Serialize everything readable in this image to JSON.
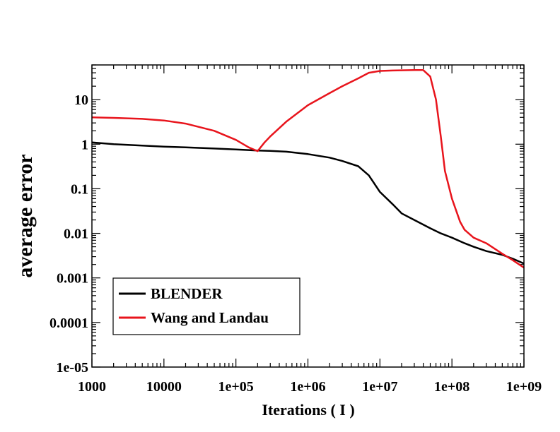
{
  "chart_data": {
    "type": "line",
    "title": "",
    "xlabel": "Iterations ( I )",
    "ylabel": "average error",
    "x_scale": "log",
    "y_scale": "log",
    "xlim": [
      1000,
      1000000000
    ],
    "ylim": [
      1e-05,
      60
    ],
    "x_tick_values": [
      1000,
      10000,
      100000,
      1000000,
      10000000,
      100000000,
      1000000000
    ],
    "x_tick_labels": [
      "1000",
      "10000",
      "1e+05",
      "1e+06",
      "1e+07",
      "1e+08",
      "1e+09"
    ],
    "y_tick_values": [
      1e-05,
      0.0001,
      0.001,
      0.01,
      0.1,
      1,
      10
    ],
    "y_tick_labels": [
      "1e-05",
      "0.0001",
      "0.001",
      "0.01",
      "0.1",
      "1",
      "10"
    ],
    "grid": false,
    "legend_position": "bottom-left",
    "series": [
      {
        "name": "BLENDER",
        "color": "#000000",
        "x": [
          1000,
          2000,
          5000,
          10000,
          20000,
          50000,
          100000,
          200000,
          300000,
          500000,
          1000000,
          2000000,
          3000000,
          5000000,
          7000000,
          10000000,
          15000000,
          20000000,
          30000000,
          50000000,
          70000000,
          100000000,
          150000000,
          200000000,
          300000000,
          500000000,
          700000000,
          1000000000
        ],
        "y": [
          1.1,
          1.0,
          0.93,
          0.88,
          0.85,
          0.8,
          0.76,
          0.72,
          0.71,
          0.68,
          0.6,
          0.5,
          0.42,
          0.32,
          0.2,
          0.085,
          0.045,
          0.028,
          0.02,
          0.013,
          0.01,
          0.008,
          0.006,
          0.005,
          0.004,
          0.0033,
          0.0027,
          0.0021
        ]
      },
      {
        "name": "Wang and Landau",
        "color": "#e8141c",
        "x": [
          1000,
          2000,
          5000,
          10000,
          20000,
          50000,
          100000,
          150000,
          200000,
          250000,
          300000,
          500000,
          1000000,
          2000000,
          3000000,
          5000000,
          7000000,
          10000000,
          15000000,
          20000000,
          30000000,
          40000000,
          50000000,
          60000000,
          70000000,
          80000000,
          100000000,
          130000000,
          150000000,
          200000000,
          300000000,
          500000000,
          700000000,
          1000000000
        ],
        "y": [
          4.0,
          3.9,
          3.7,
          3.4,
          2.9,
          2.0,
          1.25,
          0.85,
          0.7,
          1.1,
          1.5,
          3.2,
          7.5,
          14,
          20,
          30,
          40,
          44,
          45,
          45.5,
          46,
          46,
          33,
          10,
          1.5,
          0.25,
          0.06,
          0.018,
          0.012,
          0.008,
          0.006,
          0.0035,
          0.0025,
          0.0017
        ]
      }
    ]
  }
}
